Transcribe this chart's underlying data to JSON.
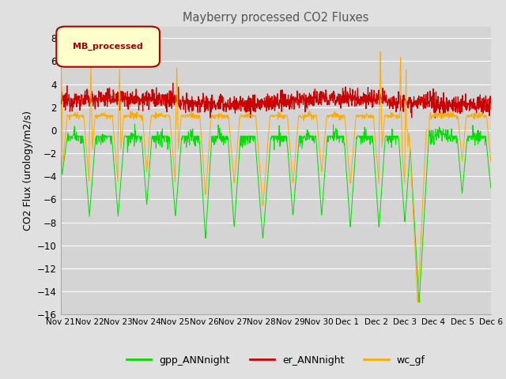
{
  "title": "Mayberry processed CO2 Fluxes",
  "ylabel": "CO2 Flux (urology/m2/s)",
  "legend_label": "MB_processed",
  "legend_label_color": "#aa0000",
  "ylim": [
    -16,
    9
  ],
  "yticks": [
    8,
    6,
    4,
    2,
    0,
    -2,
    -4,
    -6,
    -8,
    -10,
    -12,
    -14,
    -16
  ],
  "x_labels": [
    "Nov 21",
    "Nov 22",
    "Nov 23",
    "Nov 24",
    "Nov 25",
    "Nov 26",
    "Nov 27",
    "Nov 28",
    "Nov 29",
    "Nov 30",
    "Dec 1",
    "Dec 2",
    "Dec 3",
    "Dec 4",
    "Dec 5",
    "Dec 6"
  ],
  "line_colors": {
    "gpp": "#00dd00",
    "er": "#cc0000",
    "wc": "#ffaa00"
  },
  "line_labels": [
    "gpp_ANNnight",
    "er_ANNnight",
    "wc_gf"
  ],
  "background_color": "#e0e0e0",
  "plot_bg_color": "#d4d4d4",
  "grid_color": "#ffffff",
  "title_color": "#555555",
  "seed": 12345
}
